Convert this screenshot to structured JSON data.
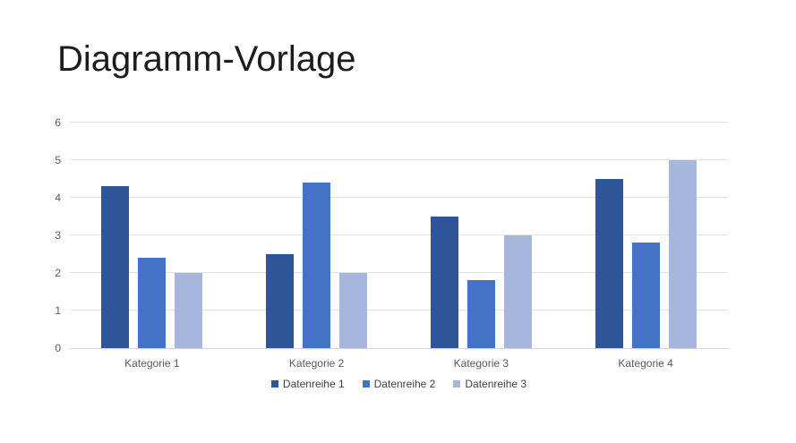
{
  "slide": {
    "title": "Diagramm-Vorlage"
  },
  "chart_data": {
    "type": "bar",
    "title": "",
    "xlabel": "",
    "ylabel": "",
    "categories": [
      "Kategorie 1",
      "Kategorie 2",
      "Kategorie 3",
      "Kategorie 4"
    ],
    "series": [
      {
        "name": "Datenreihe 1",
        "color": "#2E5597",
        "values": [
          4.3,
          2.5,
          3.5,
          4.5
        ]
      },
      {
        "name": "Datenreihe 2",
        "color": "#4472C4",
        "values": [
          2.4,
          4.4,
          1.8,
          2.8
        ]
      },
      {
        "name": "Datenreihe 3",
        "color": "#A6B6DD",
        "values": [
          2,
          2,
          3,
          5
        ]
      }
    ],
    "ylim": [
      0,
      6
    ],
    "yticks": [
      0,
      1,
      2,
      3,
      4,
      5,
      6
    ],
    "grid": true,
    "legend_position": "bottom"
  }
}
